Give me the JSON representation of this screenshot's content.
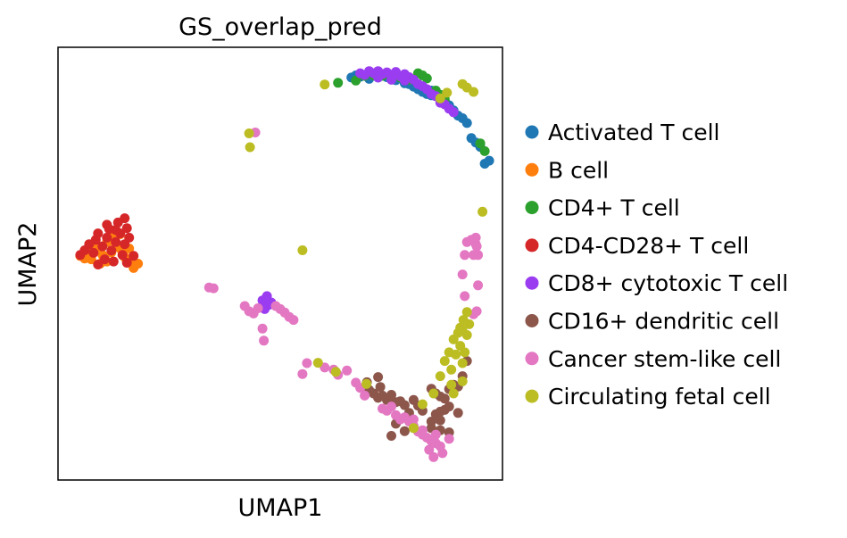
{
  "chart_data": {
    "type": "scatter",
    "title": "GS_overlap_pred",
    "xlabel": "UMAP1",
    "ylabel": "UMAP2",
    "xlim": [
      0,
      100
    ],
    "ylim": [
      0,
      100
    ],
    "grid": false,
    "ticks": false,
    "legend_position": "right",
    "series": [
      {
        "name": "Activated T cell",
        "color": "#1f77b4",
        "points": [
          [
            66,
            93
          ],
          [
            67,
            93.5
          ],
          [
            68,
            93.2
          ],
          [
            70,
            92.7
          ],
          [
            72,
            93
          ],
          [
            74,
            93.1
          ],
          [
            75,
            92.7
          ],
          [
            76,
            92.4
          ],
          [
            78,
            91.7
          ],
          [
            79,
            91.5
          ],
          [
            80,
            90.9
          ],
          [
            81,
            90.3
          ],
          [
            82,
            89.7
          ],
          [
            83,
            89.2
          ],
          [
            84,
            88.9
          ],
          [
            86,
            88.1
          ],
          [
            87,
            87.6
          ],
          [
            88,
            86.6
          ],
          [
            89,
            85.4
          ],
          [
            90,
            84.2
          ],
          [
            91,
            83.6
          ],
          [
            92,
            82.5
          ],
          [
            93,
            79
          ],
          [
            94,
            78
          ],
          [
            95,
            77
          ],
          [
            96,
            73.1
          ],
          [
            97,
            73.8
          ],
          [
            80,
            91.5
          ],
          [
            84,
            90
          ]
        ]
      },
      {
        "name": "B cell",
        "color": "#ff7f0e",
        "points": [
          [
            5,
            51.8
          ],
          [
            6,
            51.2
          ],
          [
            7,
            52.5
          ],
          [
            7.5,
            51
          ],
          [
            9,
            53
          ],
          [
            10,
            52
          ],
          [
            11,
            50.5
          ],
          [
            12,
            52.6
          ],
          [
            13,
            54.5
          ],
          [
            14,
            53.5
          ],
          [
            15,
            51.5
          ],
          [
            16,
            50.4
          ],
          [
            17,
            49
          ],
          [
            18,
            50
          ],
          [
            8,
            54
          ],
          [
            11,
            55
          ],
          [
            12.5,
            56.2
          ],
          [
            14,
            56.8
          ],
          [
            16,
            53.5
          ],
          [
            9.5,
            50
          ]
        ]
      },
      {
        "name": "CD4+ T cell",
        "color": "#2ca02c",
        "points": [
          [
            63,
            91.8
          ],
          [
            67,
            92.3
          ],
          [
            69,
            93.4
          ],
          [
            71,
            93.5
          ],
          [
            73,
            93.4
          ],
          [
            77,
            93
          ],
          [
            79,
            92.5
          ],
          [
            81,
            94
          ],
          [
            82,
            93.5
          ],
          [
            83,
            92.8
          ],
          [
            85,
            90
          ],
          [
            86,
            89
          ],
          [
            87,
            88
          ],
          [
            95,
            77.8
          ],
          [
            96,
            76
          ]
        ]
      },
      {
        "name": "CD4-CD28+ T cell",
        "color": "#d62728",
        "points": [
          [
            5,
            52
          ],
          [
            6,
            53.1
          ],
          [
            7,
            54.5
          ],
          [
            8,
            52.5
          ],
          [
            8.5,
            55.5
          ],
          [
            9,
            57
          ],
          [
            10,
            54
          ],
          [
            10.5,
            51
          ],
          [
            11,
            56
          ],
          [
            11.5,
            58
          ],
          [
            12,
            53
          ],
          [
            12.5,
            50.5
          ],
          [
            13,
            55
          ],
          [
            13.5,
            59.5
          ],
          [
            14,
            57
          ],
          [
            14.5,
            52
          ],
          [
            15,
            54.5
          ],
          [
            15.5,
            50.2
          ],
          [
            16,
            56
          ],
          [
            17,
            51.8
          ],
          [
            15,
            60.5
          ],
          [
            15.5,
            58.2
          ],
          [
            9,
            49.8
          ],
          [
            13,
            57.8
          ],
          [
            11,
            59
          ]
        ]
      },
      {
        "name": "CD8+ cytotoxic T cell",
        "color": "#9a3cf0",
        "points": [
          [
            68,
            94
          ],
          [
            69,
            93.6
          ],
          [
            70,
            94.5
          ],
          [
            71,
            94
          ],
          [
            72,
            94.5
          ],
          [
            73,
            93.8
          ],
          [
            74,
            94.2
          ],
          [
            75,
            93.6
          ],
          [
            76,
            94.3
          ],
          [
            77,
            93.3
          ],
          [
            78,
            93.8
          ],
          [
            79,
            93.1
          ],
          [
            80,
            92.5
          ],
          [
            81,
            91.5
          ],
          [
            82,
            91
          ],
          [
            83,
            90.3
          ],
          [
            84,
            89.2
          ],
          [
            85,
            88.7
          ],
          [
            86,
            87.2
          ],
          [
            87,
            86.8
          ],
          [
            88,
            85.8
          ],
          [
            89,
            85
          ],
          [
            72,
            93
          ],
          [
            75,
            92.5
          ],
          [
            78,
            92.3
          ],
          [
            46,
            41.5
          ],
          [
            47,
            42.5
          ],
          [
            47.5,
            40.5
          ],
          [
            48,
            41
          ],
          [
            46.5,
            39.5
          ]
        ]
      },
      {
        "name": "CD16+ dendritic cell",
        "color": "#8c564b",
        "points": [
          [
            69.5,
            22.6
          ],
          [
            70,
            20.8
          ],
          [
            71,
            20
          ],
          [
            72,
            19
          ],
          [
            72.5,
            21.5
          ],
          [
            73,
            19.5
          ],
          [
            74,
            18.5
          ],
          [
            75,
            19.7
          ],
          [
            76,
            18
          ],
          [
            77,
            18.2
          ],
          [
            78,
            17.3
          ],
          [
            79,
            15.5
          ],
          [
            80,
            18.5
          ],
          [
            81,
            17.2
          ],
          [
            82,
            16
          ],
          [
            84,
            13.5
          ],
          [
            85,
            15.2
          ],
          [
            86,
            15.8
          ],
          [
            87,
            16.2
          ],
          [
            88,
            17
          ],
          [
            84,
            21.1
          ],
          [
            85,
            20
          ],
          [
            86,
            19.3
          ],
          [
            87,
            18.8
          ],
          [
            88,
            21
          ],
          [
            89,
            22
          ],
          [
            90,
            21.6
          ],
          [
            91,
            24
          ],
          [
            92,
            27.5
          ],
          [
            88,
            11
          ],
          [
            86,
            11.5
          ],
          [
            84,
            12
          ],
          [
            75,
            10.2
          ],
          [
            78,
            11.3
          ],
          [
            86,
            13.8
          ],
          [
            90,
            15.5
          ],
          [
            72,
            23.8
          ],
          [
            76,
            13
          ]
        ]
      },
      {
        "name": "Cancer stem-like cell",
        "color": "#e377c2",
        "points": [
          [
            34,
            44.5
          ],
          [
            35,
            44.3
          ],
          [
            42,
            40.2
          ],
          [
            43,
            39
          ],
          [
            44,
            38.5
          ],
          [
            45,
            39.7
          ],
          [
            49,
            40.2
          ],
          [
            50,
            39.5
          ],
          [
            51,
            38.7
          ],
          [
            52,
            37.7
          ],
          [
            53,
            37
          ],
          [
            46,
            35
          ],
          [
            46.3,
            32.2
          ],
          [
            56,
            27
          ],
          [
            62,
            25.5
          ],
          [
            63,
            24.3
          ],
          [
            65,
            25.3
          ],
          [
            67,
            22.5
          ],
          [
            68,
            21.3
          ],
          [
            69,
            19.5
          ],
          [
            73,
            16.5
          ],
          [
            74,
            16
          ],
          [
            75,
            17
          ],
          [
            76,
            15
          ],
          [
            77,
            14
          ],
          [
            78,
            14.5
          ],
          [
            79,
            13.5
          ],
          [
            80,
            12.5
          ],
          [
            81,
            11.2
          ],
          [
            82,
            10.5
          ],
          [
            83,
            9.8
          ],
          [
            84,
            9
          ],
          [
            85,
            8.5
          ],
          [
            86,
            7.8
          ],
          [
            86.5,
            6.2
          ],
          [
            84.5,
            5.3
          ],
          [
            83.5,
            7
          ],
          [
            85,
            10.5
          ],
          [
            80,
            14
          ],
          [
            82,
            11.5
          ],
          [
            88,
            9.5
          ],
          [
            91,
            47.5
          ],
          [
            91.5,
            42.5
          ],
          [
            91.5,
            52
          ],
          [
            92,
            55
          ],
          [
            94,
            54.5
          ],
          [
            94.5,
            52
          ],
          [
            94.5,
            45
          ],
          [
            93.5,
            38.3
          ],
          [
            94.2,
            39
          ],
          [
            93.5,
            52
          ],
          [
            93,
            55.5
          ],
          [
            94,
            56
          ],
          [
            94.2,
            54
          ],
          [
            44.4,
            80.3
          ],
          [
            55,
            24.5
          ],
          [
            60,
            26
          ]
        ]
      },
      {
        "name": "Circulating fetal cell",
        "color": "#bcbd22",
        "points": [
          [
            60,
            91.4
          ],
          [
            43,
            80.1
          ],
          [
            43.2,
            76.9
          ],
          [
            55,
            53.1
          ],
          [
            58.5,
            27.1
          ],
          [
            62.5,
            25
          ],
          [
            69.4,
            22.2
          ],
          [
            86,
            24
          ],
          [
            87,
            27.5
          ],
          [
            88,
            29.5
          ],
          [
            89,
            32.5
          ],
          [
            90,
            34
          ],
          [
            90.5,
            35.2
          ],
          [
            91,
            34.5
          ],
          [
            92,
            33.5
          ],
          [
            88.5,
            25.5
          ],
          [
            89.5,
            29
          ],
          [
            90.5,
            31
          ],
          [
            91.5,
            29.5
          ],
          [
            91,
            27
          ],
          [
            92.5,
            36
          ],
          [
            91.2,
            37
          ],
          [
            92,
            38.8
          ],
          [
            91,
            22.8
          ],
          [
            89,
            20
          ],
          [
            88.5,
            22
          ],
          [
            84.5,
            20
          ],
          [
            80,
            12
          ],
          [
            82,
            17.5
          ],
          [
            93.5,
            89.7
          ],
          [
            92,
            90.7
          ],
          [
            91,
            91.5
          ],
          [
            87.5,
            89.5
          ],
          [
            86,
            88.2
          ],
          [
            95.5,
            62
          ]
        ]
      }
    ]
  }
}
